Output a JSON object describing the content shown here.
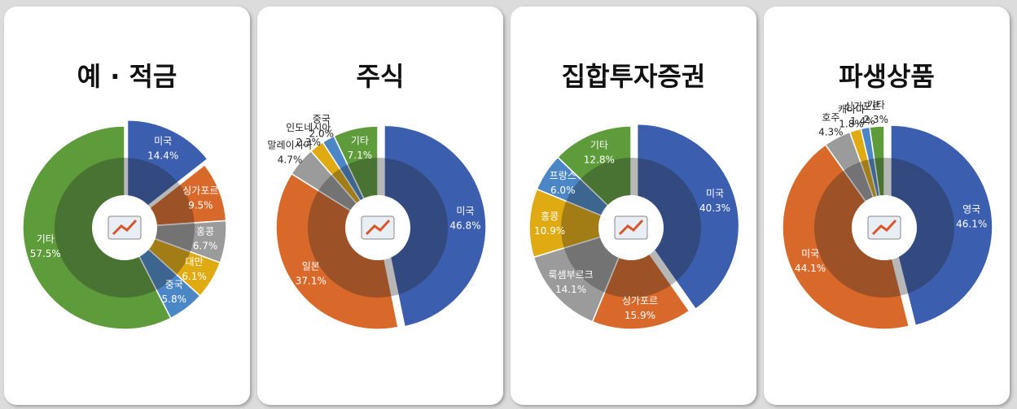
{
  "chart_data": [
    {
      "type": "pie",
      "title": "예 · 적금",
      "categories": [
        "미국",
        "싱가포르",
        "홍콩",
        "대만",
        "중국",
        "기타"
      ],
      "values": [
        14.4,
        9.5,
        6.7,
        6.1,
        5.8,
        57.5
      ],
      "value_labels": [
        "14.4%",
        "9.5%",
        "6.7%",
        "6.1%",
        "5.8%",
        "57.5%"
      ],
      "colors": [
        "#3b5fae",
        "#d8692b",
        "#9b9b9b",
        "#e0aa12",
        "#4b86c6",
        "#5e9b3b"
      ]
    },
    {
      "type": "pie",
      "title": "주식",
      "categories": [
        "미국",
        "일본",
        "말레이시아",
        "인도네시아",
        "중국",
        "기타"
      ],
      "values": [
        46.8,
        37.1,
        4.7,
        2.3,
        2.0,
        7.1
      ],
      "value_labels": [
        "46.8%",
        "37.1%",
        "4.7%",
        "2.3%",
        "2.0%",
        "7.1%"
      ],
      "colors": [
        "#3b5fae",
        "#d8692b",
        "#9b9b9b",
        "#e0aa12",
        "#4b86c6",
        "#5e9b3b"
      ]
    },
    {
      "type": "pie",
      "title": "집합투자증권",
      "categories": [
        "미국",
        "싱가포르",
        "룩셈부르크",
        "홍콩",
        "프랑스",
        "기타"
      ],
      "values": [
        40.3,
        15.9,
        14.1,
        10.9,
        6.0,
        12.8
      ],
      "value_labels": [
        "40.3%",
        "15.9%",
        "14.1%",
        "10.9%",
        "6.0%",
        "12.8%"
      ],
      "colors": [
        "#3b5fae",
        "#d8692b",
        "#9b9b9b",
        "#e0aa12",
        "#4b86c6",
        "#5e9b3b"
      ]
    },
    {
      "type": "pie",
      "title": "파생상품",
      "categories": [
        "영국",
        "미국",
        "호주",
        "캐나다",
        "싱가포르",
        "기타"
      ],
      "values": [
        46.1,
        44.1,
        4.3,
        1.8,
        1.4,
        2.3
      ],
      "value_labels": [
        "46.1%",
        "44.1%",
        "4.3%",
        "1.8%",
        "1.4%",
        "2.3%"
      ],
      "colors": [
        "#3b5fae",
        "#d8692b",
        "#9b9b9b",
        "#e0aa12",
        "#4b86c6",
        "#5e9b3b"
      ]
    }
  ]
}
